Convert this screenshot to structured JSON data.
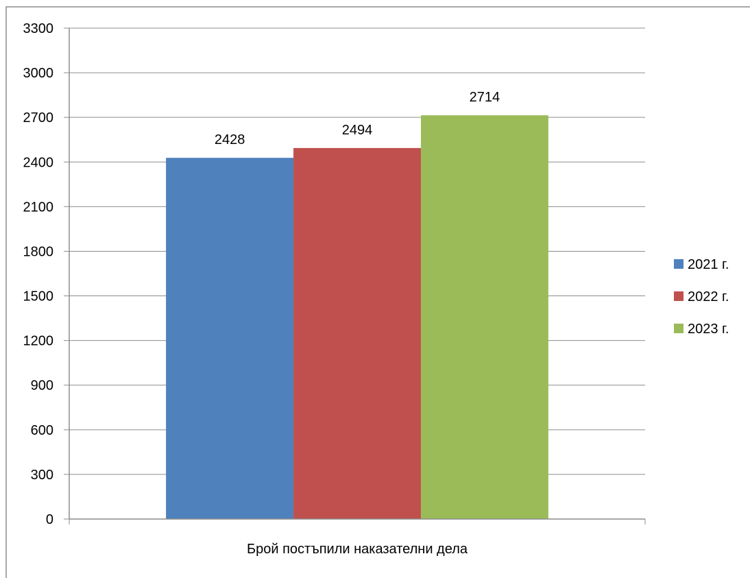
{
  "chart_data": {
    "type": "bar",
    "title": "",
    "xlabel": "",
    "ylabel": "",
    "categories": [
      "Брой постъпили наказателни дела"
    ],
    "series": [
      {
        "name": "2021 г.",
        "values": [
          2428
        ],
        "color": "#4F81BD"
      },
      {
        "name": "2022 г.",
        "values": [
          2494
        ],
        "color": "#C0504D"
      },
      {
        "name": "2023 г.",
        "values": [
          2714
        ],
        "color": "#9BBB59"
      }
    ],
    "ylim": [
      0,
      3300
    ],
    "yticks": [
      0,
      300,
      600,
      900,
      1200,
      1500,
      1800,
      2100,
      2400,
      2700,
      3000,
      3300
    ],
    "grid": true,
    "legend_position": "right",
    "data_labels": true
  }
}
